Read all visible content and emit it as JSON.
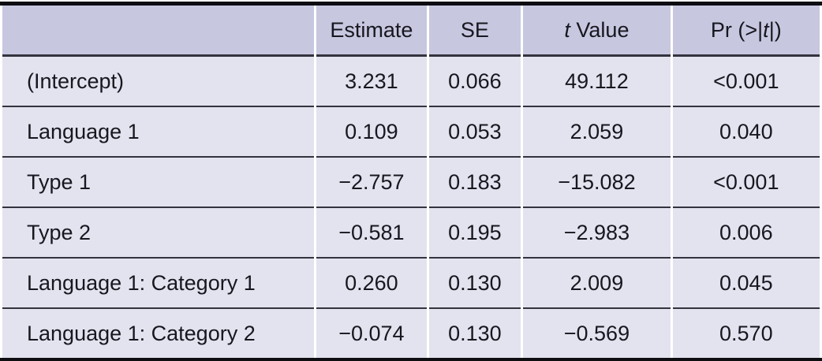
{
  "table": {
    "title": "regression-coefficients-table",
    "colors": {
      "header_bg": "#c7c7e0",
      "row_bg": "#e3e3ef",
      "rule": "#33333e",
      "border_heavy": "#0d0d12",
      "text": "#17171f"
    },
    "columns": [
      {
        "id": "term",
        "label_parts": [
          {
            "text": ""
          }
        ]
      },
      {
        "id": "estimate",
        "label_parts": [
          {
            "text": "Estimate"
          }
        ]
      },
      {
        "id": "se",
        "label_parts": [
          {
            "text": "SE"
          }
        ]
      },
      {
        "id": "t_value",
        "label_parts": [
          {
            "text": "t",
            "italic": true
          },
          {
            "text": " Value"
          }
        ]
      },
      {
        "id": "pr",
        "label_parts": [
          {
            "text": "Pr (>|"
          },
          {
            "text": "t",
            "italic": true
          },
          {
            "text": "|)"
          }
        ]
      }
    ],
    "rows": [
      {
        "term": "(Intercept)",
        "estimate": "3.231",
        "se": "0.066",
        "t_value": "49.112",
        "pr": "<0.001"
      },
      {
        "term": "Language 1",
        "estimate": "0.109",
        "se": "0.053",
        "t_value": "2.059",
        "pr": "0.040"
      },
      {
        "term": "Type 1",
        "estimate": "−2.757",
        "se": "0.183",
        "t_value": "−15.082",
        "pr": "<0.001"
      },
      {
        "term": "Type 2",
        "estimate": "−0.581",
        "se": "0.195",
        "t_value": "−2.983",
        "pr": "0.006"
      },
      {
        "term": "Language 1: Category 1",
        "estimate": "0.260",
        "se": "0.130",
        "t_value": "2.009",
        "pr": "0.045"
      },
      {
        "term": "Language 1: Category 2",
        "estimate": "−0.074",
        "se": "0.130",
        "t_value": "−0.569",
        "pr": "0.570"
      }
    ]
  },
  "chart_data": {
    "type": "table",
    "title": "",
    "column_headers": [
      "",
      "Estimate",
      "SE",
      "t Value",
      "Pr (>|t|)"
    ],
    "rows": [
      [
        "(Intercept)",
        3.231,
        0.066,
        49.112,
        "<0.001"
      ],
      [
        "Language 1",
        0.109,
        0.053,
        2.059,
        0.04
      ],
      [
        "Type 1",
        -2.757,
        0.183,
        -15.082,
        "<0.001"
      ],
      [
        "Type 2",
        -0.581,
        0.195,
        -2.983,
        0.006
      ],
      [
        "Language 1: Category 1",
        0.26,
        0.13,
        2.009,
        0.045
      ],
      [
        "Language 1: Category 2",
        -0.074,
        0.13,
        -0.569,
        0.57
      ]
    ]
  }
}
